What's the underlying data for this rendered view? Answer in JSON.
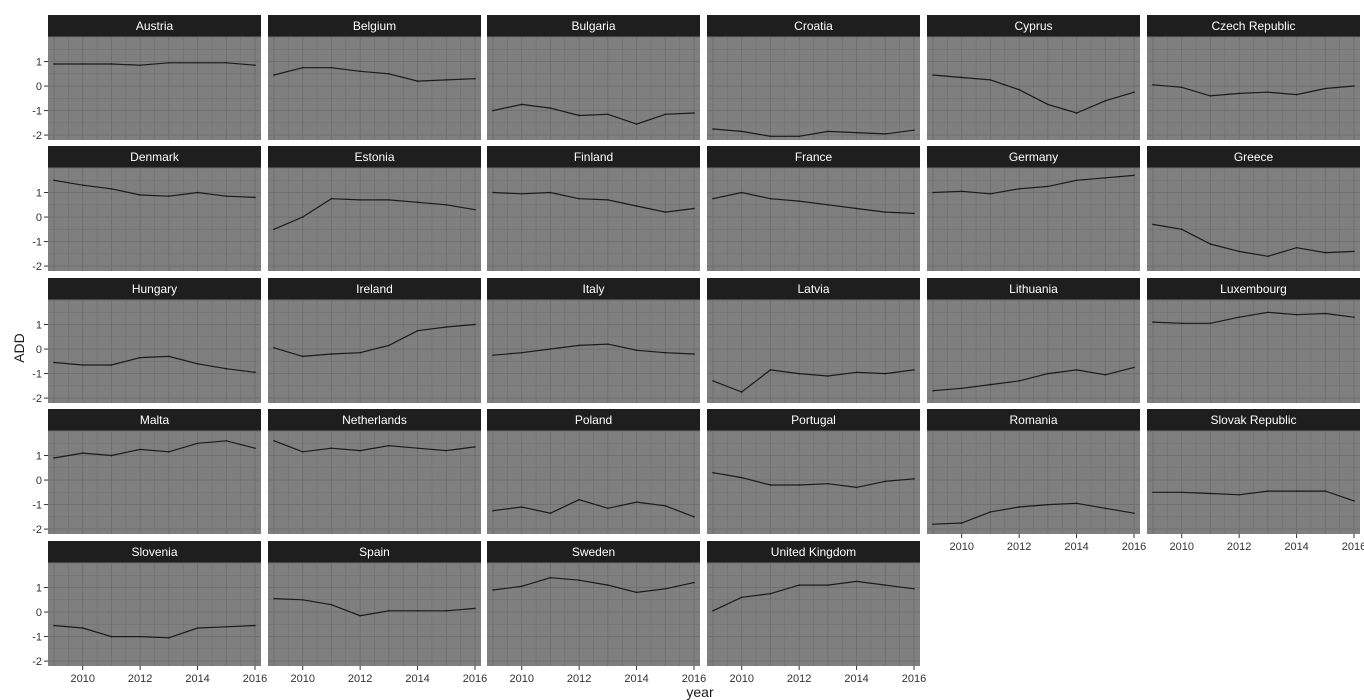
{
  "chart_data": {
    "type": "line",
    "xlabel": "year",
    "ylabel": "ADD",
    "x": [
      2009,
      2010,
      2011,
      2012,
      2013,
      2014,
      2015,
      2016
    ],
    "xlim": [
      2009,
      2016
    ],
    "ylim": [
      -2.2,
      2.0
    ],
    "x_ticks": [
      2010,
      2012,
      2014,
      2016
    ],
    "x_tick_labels": [
      "2010",
      "2012",
      "2014",
      "2016"
    ],
    "y_ticks": [
      1,
      0,
      -1,
      -2
    ],
    "y_tick_labels": [
      "1",
      "0",
      "-1",
      "-2"
    ],
    "grid": true,
    "colors": {
      "panel_bg": "#7f7f7f",
      "strip_bg": "#1e1e1e",
      "strip_text": "#ffffff",
      "line": "#1a1a1a",
      "grid": "#6e6e6e"
    },
    "panels": [
      {
        "name": "Austria",
        "values": [
          0.9,
          0.9,
          0.9,
          0.85,
          0.95,
          0.95,
          0.95,
          0.85
        ]
      },
      {
        "name": "Belgium",
        "values": [
          0.45,
          0.75,
          0.75,
          0.6,
          0.5,
          0.2,
          0.25,
          0.3
        ]
      },
      {
        "name": "Bulgaria",
        "values": [
          -1.0,
          -0.75,
          -0.9,
          -1.2,
          -1.15,
          -1.55,
          -1.15,
          -1.1
        ]
      },
      {
        "name": "Croatia",
        "values": [
          -1.75,
          -1.85,
          -2.05,
          -2.05,
          -1.85,
          -1.9,
          -1.95,
          -1.8
        ]
      },
      {
        "name": "Cyprus",
        "values": [
          0.45,
          0.35,
          0.25,
          -0.15,
          -0.75,
          -1.1,
          -0.6,
          -0.25
        ]
      },
      {
        "name": "Czech Republic",
        "values": [
          0.05,
          -0.05,
          -0.4,
          -0.3,
          -0.25,
          -0.35,
          -0.1,
          0.0
        ]
      },
      {
        "name": "Denmark",
        "values": [
          1.5,
          1.3,
          1.15,
          0.9,
          0.85,
          1.0,
          0.85,
          0.8
        ]
      },
      {
        "name": "Estonia",
        "values": [
          -0.5,
          0.0,
          0.75,
          0.7,
          0.7,
          0.6,
          0.5,
          0.3
        ]
      },
      {
        "name": "Finland",
        "values": [
          1.0,
          0.95,
          1.0,
          0.75,
          0.7,
          0.45,
          0.2,
          0.35
        ]
      },
      {
        "name": "France",
        "values": [
          0.75,
          1.0,
          0.75,
          0.65,
          0.5,
          0.35,
          0.2,
          0.15
        ]
      },
      {
        "name": "Germany",
        "values": [
          1.0,
          1.05,
          0.95,
          1.15,
          1.25,
          1.5,
          1.6,
          1.7
        ]
      },
      {
        "name": "Greece",
        "values": [
          -0.3,
          -0.5,
          -1.1,
          -1.4,
          -1.6,
          -1.25,
          -1.45,
          -1.4
        ]
      },
      {
        "name": "Hungary",
        "values": [
          -0.55,
          -0.65,
          -0.65,
          -0.35,
          -0.3,
          -0.6,
          -0.8,
          -0.95
        ]
      },
      {
        "name": "Ireland",
        "values": [
          0.05,
          -0.3,
          -0.2,
          -0.15,
          0.15,
          0.75,
          0.9,
          1.0
        ]
      },
      {
        "name": "Italy",
        "values": [
          -0.25,
          -0.15,
          0.0,
          0.15,
          0.2,
          -0.05,
          -0.15,
          -0.2
        ]
      },
      {
        "name": "Latvia",
        "values": [
          -1.3,
          -1.75,
          -0.85,
          -1.0,
          -1.1,
          -0.95,
          -1.0,
          -0.85
        ]
      },
      {
        "name": "Lithuania",
        "values": [
          -1.7,
          -1.6,
          -1.45,
          -1.3,
          -1.0,
          -0.85,
          -1.05,
          -0.75
        ]
      },
      {
        "name": "Luxembourg",
        "values": [
          1.1,
          1.05,
          1.05,
          1.3,
          1.5,
          1.4,
          1.45,
          1.3
        ]
      },
      {
        "name": "Malta",
        "values": [
          0.9,
          1.1,
          1.0,
          1.25,
          1.15,
          1.5,
          1.6,
          1.3
        ]
      },
      {
        "name": "Netherlands",
        "values": [
          1.6,
          1.15,
          1.3,
          1.2,
          1.4,
          1.3,
          1.2,
          1.35
        ]
      },
      {
        "name": "Poland",
        "values": [
          -1.25,
          -1.1,
          -1.35,
          -0.8,
          -1.15,
          -0.9,
          -1.05,
          -1.5
        ]
      },
      {
        "name": "Portugal",
        "values": [
          0.3,
          0.1,
          -0.2,
          -0.2,
          -0.15,
          -0.3,
          -0.05,
          0.05
        ]
      },
      {
        "name": "Romania",
        "values": [
          -1.8,
          -1.75,
          -1.3,
          -1.1,
          -1.0,
          -0.95,
          -1.15,
          -1.35
        ]
      },
      {
        "name": "Slovak Republic",
        "values": [
          -0.5,
          -0.5,
          -0.55,
          -0.6,
          -0.45,
          -0.45,
          -0.45,
          -0.85
        ]
      },
      {
        "name": "Slovenia",
        "values": [
          -0.55,
          -0.65,
          -1.0,
          -1.0,
          -1.05,
          -0.65,
          -0.6,
          -0.55
        ]
      },
      {
        "name": "Spain",
        "values": [
          0.55,
          0.5,
          0.3,
          -0.15,
          0.05,
          0.05,
          0.05,
          0.15
        ]
      },
      {
        "name": "Sweden",
        "values": [
          0.9,
          1.05,
          1.4,
          1.3,
          1.1,
          0.8,
          0.95,
          1.2
        ]
      },
      {
        "name": "United Kingdom",
        "values": [
          0.05,
          0.6,
          0.75,
          1.1,
          1.1,
          1.25,
          1.1,
          0.95
        ]
      }
    ]
  }
}
